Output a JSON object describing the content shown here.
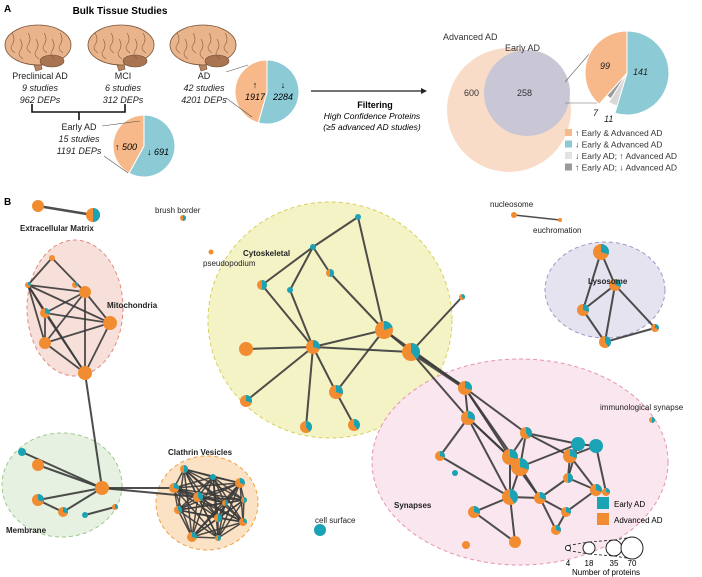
{
  "panel_a": {
    "label": "A",
    "title": "Bulk Tissue Studies",
    "groups": [
      {
        "name": "Preclinical AD",
        "studies": "9 studies",
        "deps": "962 DEPs"
      },
      {
        "name": "MCI",
        "studies": "6 studies",
        "deps": "312 DEPs"
      },
      {
        "name": "AD",
        "studies": "42 studies",
        "deps": "4201 DEPs"
      }
    ],
    "early": {
      "name": "Early AD",
      "studies": "15 studies",
      "deps": "1191 DEPs"
    },
    "early_pie": {
      "up": 500,
      "down": 691,
      "up_label": "↑ 500",
      "down_label": "↓ 691"
    },
    "ad_pie": {
      "up": 1917,
      "down": 2284,
      "up_arrow": "↑",
      "up_label": "1917",
      "down_arrow": "↓",
      "down_label": "2284"
    },
    "filtering": {
      "title": "Filtering",
      "line1": "High Confidence Proteins",
      "line2": "(≥5 advanced AD studies)"
    },
    "venn": {
      "outer_label": "Advanced AD",
      "inner_label": "Early AD",
      "outer_only": "600",
      "overlap": "258"
    },
    "overlap_pie": {
      "slices": [
        {
          "value": 99,
          "label": "99",
          "color": "#f7b98a"
        },
        {
          "value": 141,
          "label": "141",
          "color": "#8ccbd6"
        },
        {
          "value": 11,
          "label": "11",
          "color": "#d8d8d8"
        },
        {
          "value": 7,
          "label": "7",
          "color": "#9a9a9a"
        }
      ]
    },
    "legend": [
      {
        "label": "↑ Early & Advanced AD",
        "color": "#f7b98a"
      },
      {
        "label": "↓ Early & Advanced AD",
        "color": "#8ccbd6"
      },
      {
        "label": "↓ Early AD; ↑ Advanced AD",
        "color": "#e2e2e2"
      },
      {
        "label": "↑ Early AD; ↓ Advanced AD",
        "color": "#9a9a9a"
      }
    ]
  },
  "panel_b": {
    "label": "B",
    "clusters": {
      "ecm": "Extracellular Matrix",
      "brush": "brush border",
      "pseudo": "pseudopodium",
      "cyto": "Cytoskeletal",
      "nucleosome": "nucleosome",
      "euchromation": "euchromation",
      "lysosome": "Lysosome",
      "mito": "Mitochondria",
      "immuno": "immunological synapse",
      "clathrin": "Clathrin Vesicles",
      "membrane": "Membrane",
      "cellsurface": "cell surface",
      "synapses": "Synapses"
    },
    "colors": {
      "early": "#1aa3b5",
      "advanced": "#f28c30"
    },
    "legend": {
      "early": "Early AD",
      "advanced": "Advanced AD"
    },
    "size_legend": {
      "values": [
        "4",
        "18",
        "35",
        "70"
      ],
      "title": "Number of proteins"
    }
  }
}
